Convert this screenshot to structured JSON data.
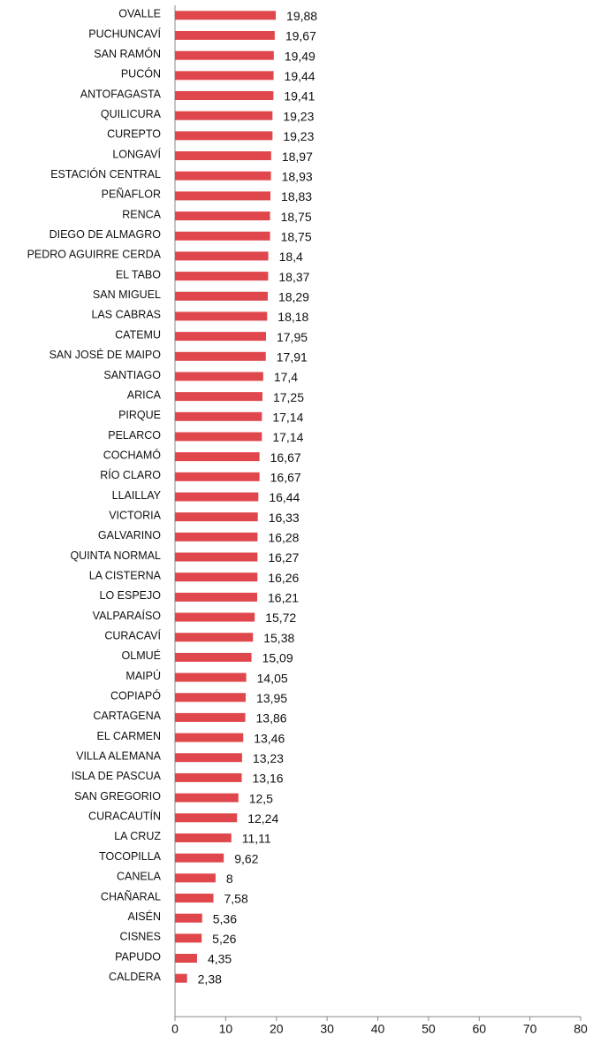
{
  "chart_data": {
    "type": "barh",
    "categories": [
      "OVALLE",
      "PUCHUNCAVÍ",
      "SAN RAMÓN",
      "PUCÓN",
      "ANTOFAGASTA",
      "QUILICURA",
      "CUREPTO",
      "LONGAVÍ",
      "ESTACIÓN CENTRAL",
      "PEÑAFLOR",
      "RENCA",
      "DIEGO DE ALMAGRO",
      "PEDRO AGUIRRE CERDA",
      "EL TABO",
      "SAN MIGUEL",
      "LAS CABRAS",
      "CATEMU",
      "SAN JOSÉ DE MAIPO",
      "SANTIAGO",
      "ARICA",
      "PIRQUE",
      "PELARCO",
      "COCHAMÓ",
      "RÍO CLARO",
      "LLAILLAY",
      "VICTORIA",
      "GALVARINO",
      "QUINTA NORMAL",
      "LA CISTERNA",
      "LO ESPEJO",
      "VALPARAÍSO",
      "CURACAVÍ",
      "OLMUÉ",
      "MAIPÚ",
      "COPIAPÓ",
      "CARTAGENA",
      "EL CARMEN",
      "VILLA ALEMANA",
      "ISLA DE PASCUA",
      "SAN GREGORIO",
      "CURACAUTÍN",
      "LA CRUZ",
      "TOCOPILLA",
      "CANELA",
      "CHAÑARAL",
      "AISÉN",
      "CISNES",
      "PAPUDO",
      "CALDERA"
    ],
    "values": [
      19.88,
      19.67,
      19.49,
      19.44,
      19.41,
      19.23,
      19.23,
      18.97,
      18.93,
      18.83,
      18.75,
      18.75,
      18.4,
      18.37,
      18.29,
      18.18,
      17.95,
      17.91,
      17.4,
      17.25,
      17.14,
      17.14,
      16.67,
      16.67,
      16.44,
      16.33,
      16.28,
      16.27,
      16.26,
      16.21,
      15.72,
      15.38,
      15.09,
      14.05,
      13.95,
      13.86,
      13.46,
      13.23,
      13.16,
      12.5,
      12.24,
      11.11,
      9.62,
      8,
      7.58,
      5.36,
      5.26,
      4.35,
      2.38
    ],
    "value_labels": [
      "19,88",
      "19,67",
      "19,49",
      "19,44",
      "19,41",
      "19,23",
      "19,23",
      "18,97",
      "18,93",
      "18,83",
      "18,75",
      "18,75",
      "18,4",
      "18,37",
      "18,29",
      "18,18",
      "17,95",
      "17,91",
      "17,4",
      "17,25",
      "17,14",
      "17,14",
      "16,67",
      "16,67",
      "16,44",
      "16,33",
      "16,28",
      "16,27",
      "16,26",
      "16,21",
      "15,72",
      "15,38",
      "15,09",
      "14,05",
      "13,95",
      "13,86",
      "13,46",
      "13,23",
      "13,16",
      "12,5",
      "12,24",
      "11,11",
      "9,62",
      "8",
      "7,58",
      "5,36",
      "5,26",
      "4,35",
      "2,38"
    ],
    "color": "#e0474c",
    "xlim": [
      0,
      80
    ],
    "xticks": [
      0,
      10,
      20,
      30,
      40,
      50,
      60,
      70,
      80
    ]
  }
}
